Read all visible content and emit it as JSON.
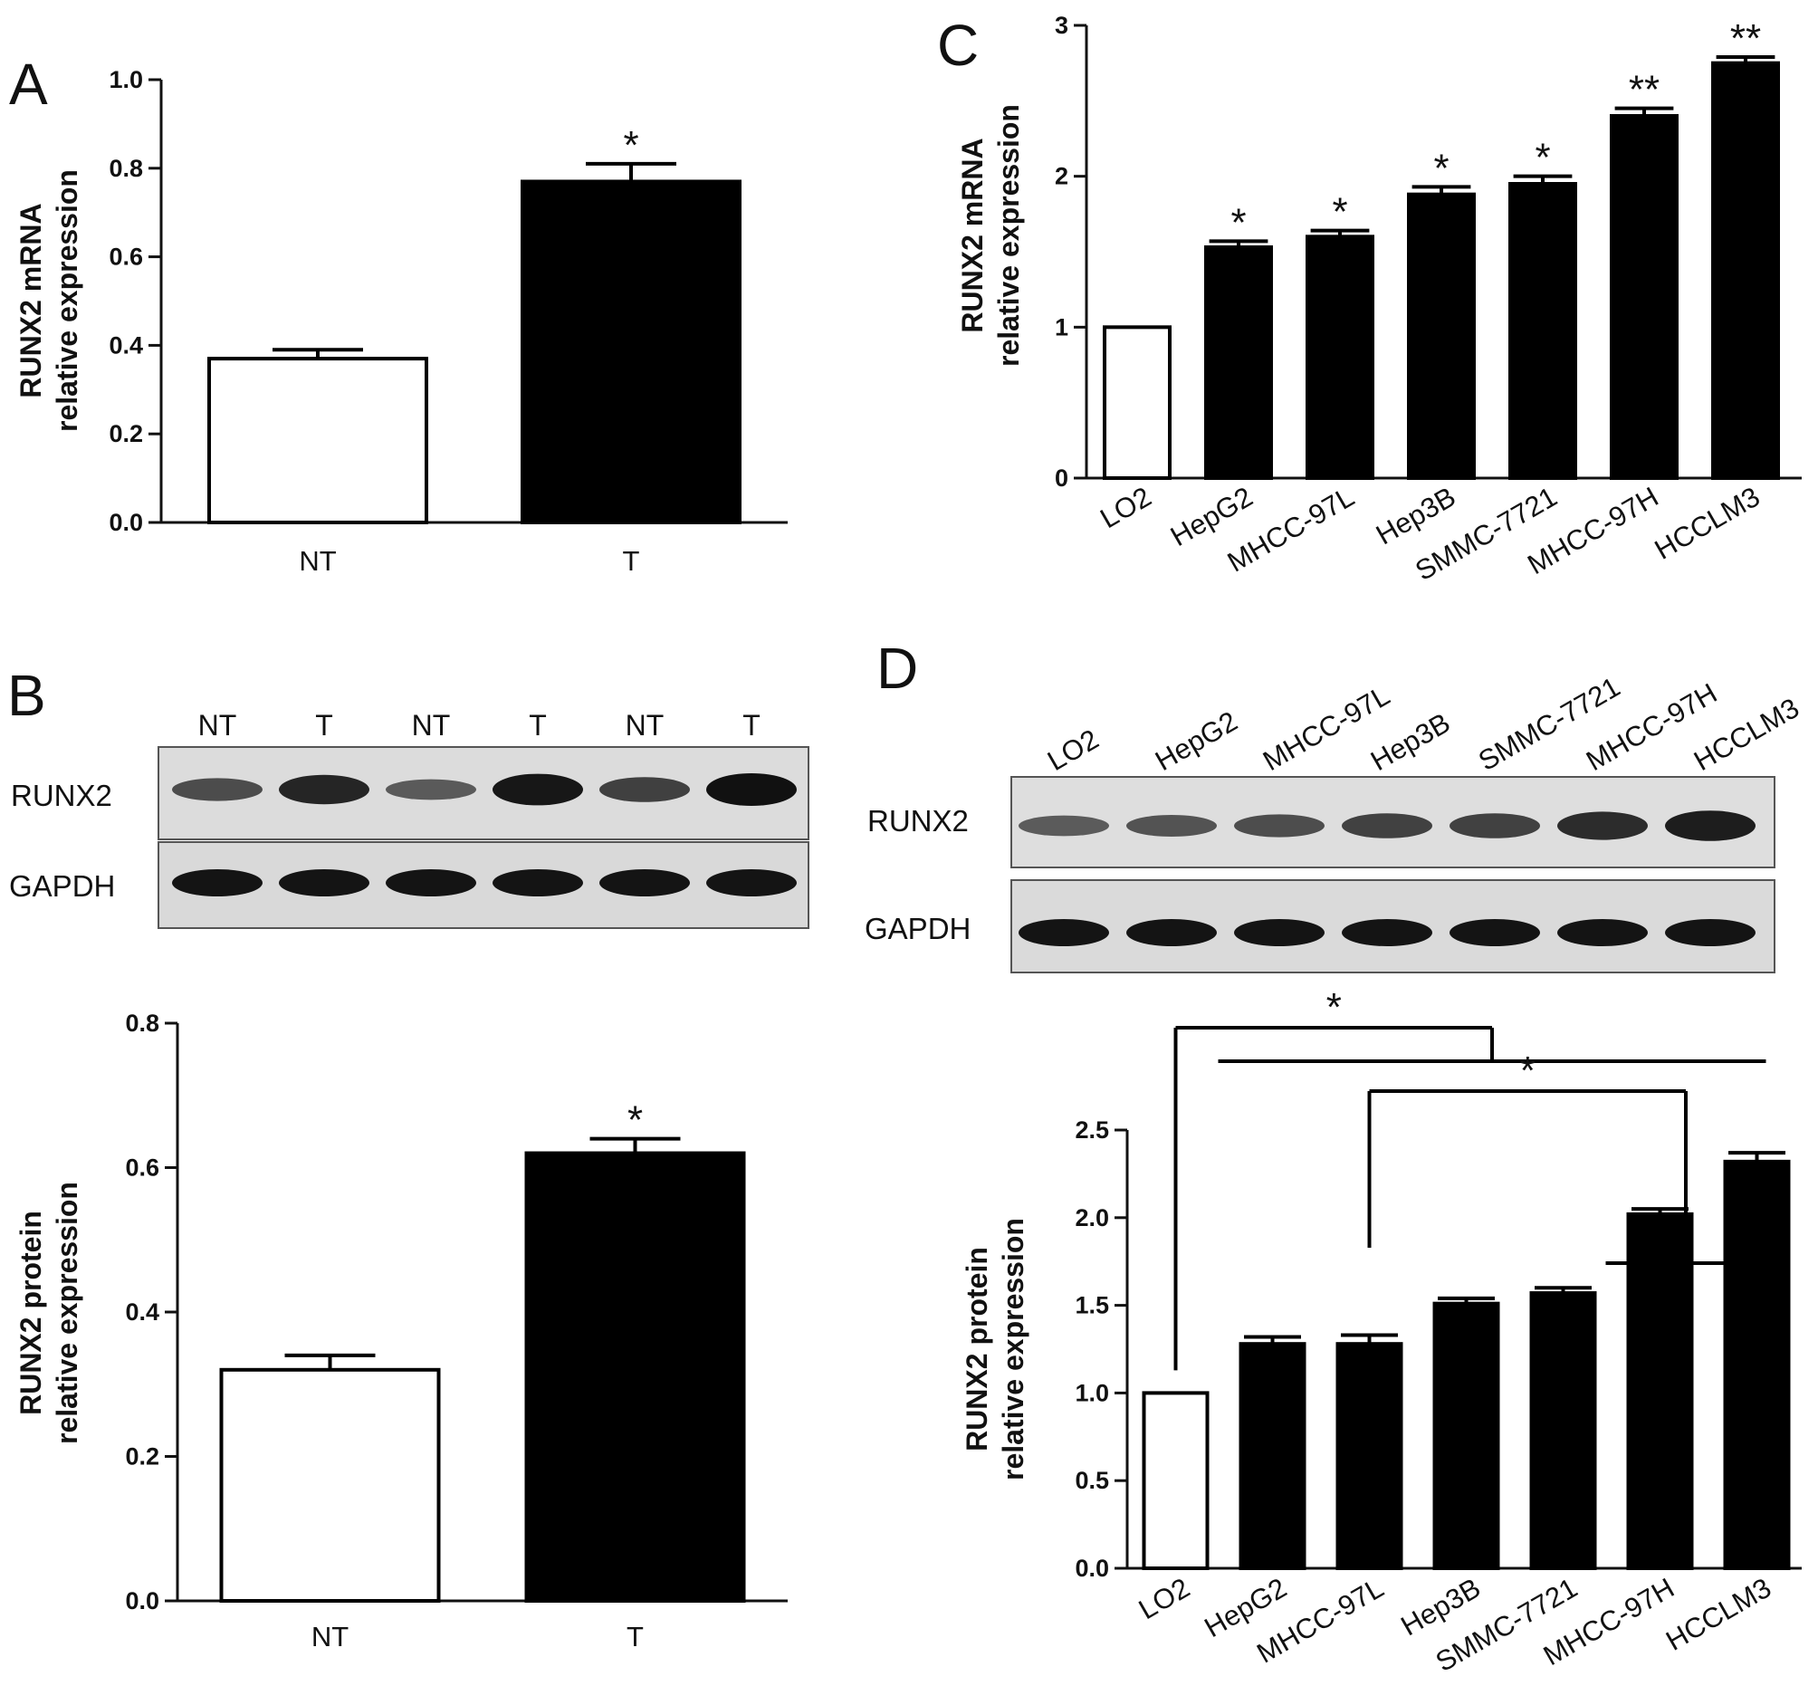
{
  "panels": {
    "a": "A",
    "b": "B",
    "c": "C",
    "d": "D"
  },
  "blot_b": {
    "lanes": [
      "NT",
      "T",
      "NT",
      "T",
      "NT",
      "T"
    ],
    "rows": [
      "RUNX2",
      "GAPDH"
    ],
    "runx2_intensity": [
      0.55,
      0.85,
      0.45,
      0.95,
      0.65,
      1.0
    ]
  },
  "blot_d": {
    "lanes": [
      "LO2",
      "HepG2",
      "MHCC-97L",
      "Hep3B",
      "SMMC-7721",
      "MHCC-97H",
      "HCCLM3"
    ],
    "rows": [
      "RUNX2",
      "GAPDH"
    ],
    "runx2_intensity": [
      0.45,
      0.5,
      0.55,
      0.65,
      0.65,
      0.8,
      0.9
    ]
  },
  "chart_data": [
    {
      "id": "A",
      "type": "bar",
      "categories": [
        "NT",
        "T"
      ],
      "values": [
        0.37,
        0.77
      ],
      "errors": [
        0.02,
        0.04
      ],
      "fills": [
        "#ffffff",
        "#000000"
      ],
      "significance": [
        "",
        "*"
      ],
      "ylabel": [
        "RUNX2 mRNA",
        "relative expression"
      ],
      "ylim": [
        0,
        1.0
      ],
      "yticks": [
        "0.0",
        "0.2",
        "0.4",
        "0.6",
        "0.8",
        "1.0"
      ]
    },
    {
      "id": "B",
      "type": "bar",
      "categories": [
        "NT",
        "T"
      ],
      "values": [
        0.32,
        0.62
      ],
      "errors": [
        0.02,
        0.02
      ],
      "fills": [
        "#ffffff",
        "#000000"
      ],
      "significance": [
        "",
        "*"
      ],
      "ylabel": [
        "RUNX2 protein",
        "relative expression"
      ],
      "ylim": [
        0,
        0.8
      ],
      "yticks": [
        "0.0",
        "0.2",
        "0.4",
        "0.6",
        "0.8"
      ]
    },
    {
      "id": "C",
      "type": "bar",
      "categories": [
        "LO2",
        "HepG2",
        "MHCC-97L",
        "Hep3B",
        "SMMC-7721",
        "MHCC-97H",
        "HCCLM3"
      ],
      "values": [
        1.0,
        1.53,
        1.6,
        1.88,
        1.95,
        2.4,
        2.75
      ],
      "errors": [
        0,
        0.04,
        0.04,
        0.05,
        0.05,
        0.05,
        0.04
      ],
      "fills": [
        "#ffffff",
        "#000000",
        "#000000",
        "#000000",
        "#000000",
        "#000000",
        "#000000"
      ],
      "significance": [
        "",
        "*",
        "*",
        "*",
        "*",
        "**",
        "**"
      ],
      "ylabel": [
        "RUNX2 mRNA",
        "relative expression"
      ],
      "ylim": [
        0,
        3
      ],
      "yticks": [
        "0",
        "1",
        "2",
        "3"
      ]
    },
    {
      "id": "D",
      "type": "bar",
      "categories": [
        "LO2",
        "HepG2",
        "MHCC-97L",
        "Hep3B",
        "SMMC-7721",
        "MHCC-97H",
        "HCCLM3"
      ],
      "values": [
        1.0,
        1.28,
        1.28,
        1.51,
        1.57,
        2.02,
        2.32
      ],
      "errors": [
        0,
        0.04,
        0.05,
        0.03,
        0.03,
        0.03,
        0.05
      ],
      "fills": [
        "#ffffff",
        "#000000",
        "#000000",
        "#000000",
        "#000000",
        "#000000",
        "#000000"
      ],
      "ylabel": [
        "RUNX2 protein",
        "relative expression"
      ],
      "ylim": [
        0,
        2.5
      ],
      "yticks": [
        "0.0",
        "0.5",
        "1.0",
        "1.5",
        "2.0",
        "2.5"
      ],
      "comparisons": [
        {
          "from": "LO2",
          "to": [
            "HepG2",
            "HCCLM3"
          ],
          "label": "*"
        },
        {
          "from": "MHCC-97L",
          "to": [
            "MHCC-97H",
            "HCCLM3"
          ],
          "label": "*"
        }
      ]
    }
  ]
}
